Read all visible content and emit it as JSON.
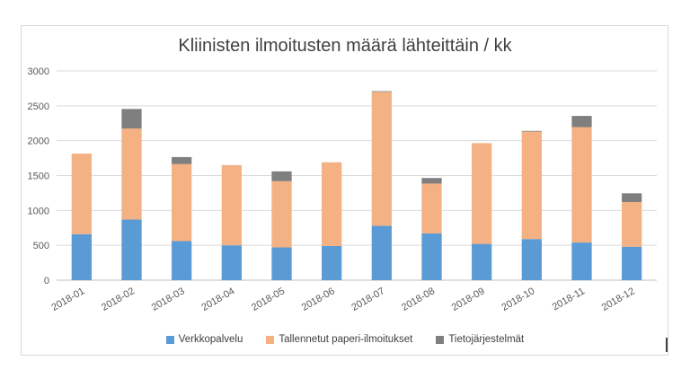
{
  "chart_data": {
    "type": "bar",
    "stacked": true,
    "title": "Kliinisten ilmoitusten määrä lähteittäin / kk",
    "categories": [
      "2018-01",
      "2018-02",
      "2018-03",
      "2018-04",
      "2018-05",
      "2018-06",
      "2018-07",
      "2018-08",
      "2018-09",
      "2018-10",
      "2018-11",
      "2018-12"
    ],
    "series": [
      {
        "name": "Verkkopalvelu",
        "color": "#5b9bd5",
        "values": [
          660,
          870,
          560,
          500,
          470,
          490,
          780,
          670,
          520,
          590,
          540,
          480
        ]
      },
      {
        "name": "Tallennetut paperi-ilmoitukset",
        "color": "#f4b183",
        "values": [
          1155,
          1305,
          1105,
          1150,
          950,
          1200,
          1920,
          715,
          1445,
          1540,
          1655,
          640
        ]
      },
      {
        "name": "Tietojärjestelmät",
        "color": "#7f7f7f",
        "values": [
          0,
          280,
          100,
          0,
          140,
          0,
          10,
          80,
          0,
          10,
          160,
          125
        ]
      }
    ],
    "ylim": [
      0,
      3000
    ],
    "yticks": [
      0,
      500,
      1000,
      1500,
      2000,
      2500,
      3000
    ],
    "grid": true,
    "legend_position": "bottom"
  }
}
